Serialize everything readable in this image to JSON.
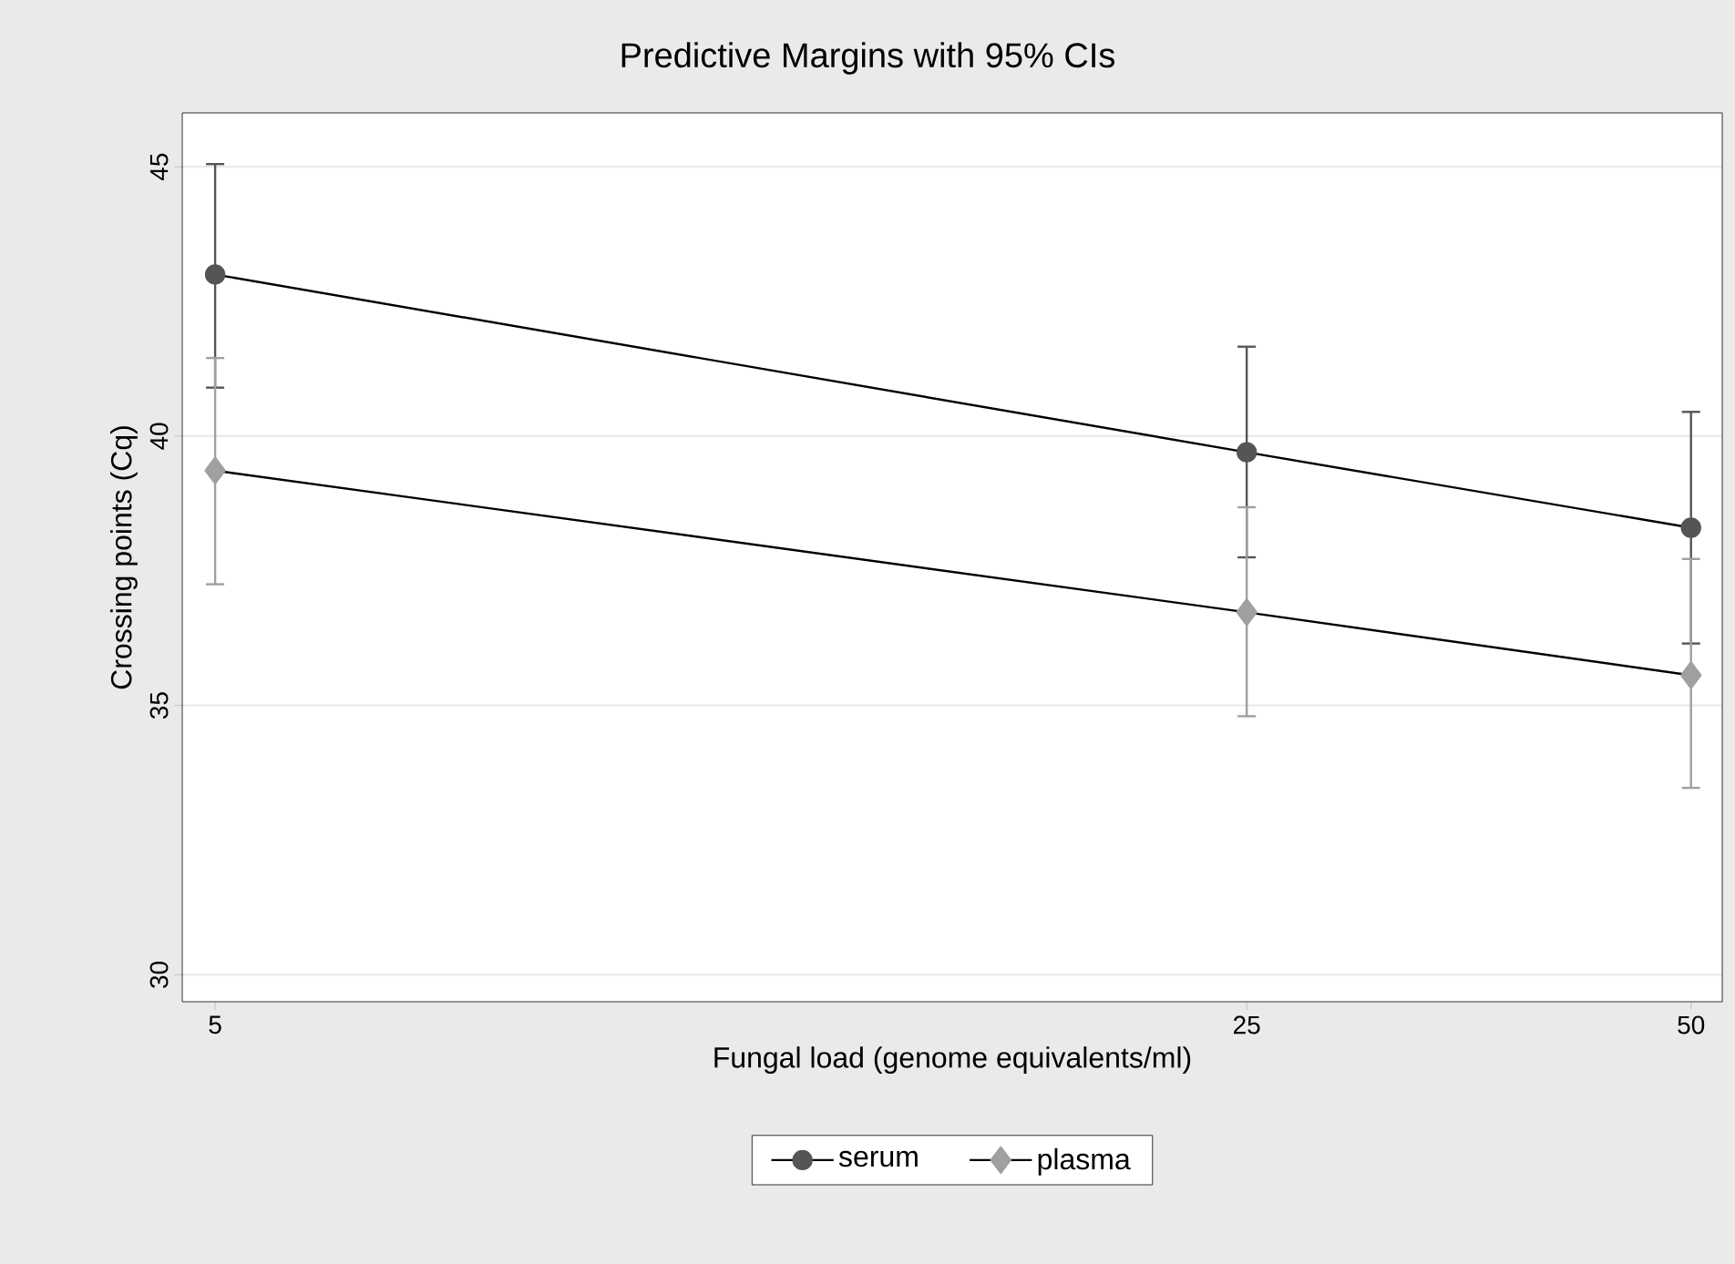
{
  "chart_data": {
    "type": "line",
    "title": "Predictive Margins with 95% CIs",
    "xlabel": "Fungal load (genome equivalents/ml)",
    "ylabel": "Crossing points (Cq)",
    "x": [
      5,
      25,
      50
    ],
    "log": "x",
    "xlim": [
      4.75,
      52.5
    ],
    "xticks": [
      5,
      25,
      50
    ],
    "ylim": [
      29.5,
      46
    ],
    "yticks": [
      30,
      35,
      40,
      45
    ],
    "grid": "y",
    "legend": "bottom",
    "series": [
      {
        "name": "serum",
        "color": "#555555",
        "marker": "circle",
        "values": [
          43.0,
          39.7,
          38.3
        ],
        "errors": [
          [
            40.9,
            45.05
          ],
          [
            37.75,
            41.66
          ],
          [
            36.15,
            40.45
          ]
        ]
      },
      {
        "name": "plasma",
        "color": "#a0a0a0",
        "marker": "diamond",
        "values": [
          39.36,
          36.73,
          35.56
        ],
        "errors": [
          [
            37.25,
            41.45
          ],
          [
            34.8,
            38.68
          ],
          [
            33.47,
            37.72
          ]
        ]
      }
    ]
  }
}
